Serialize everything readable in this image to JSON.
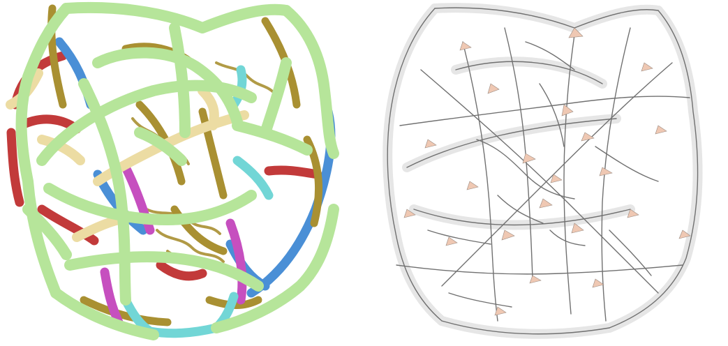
{
  "figure": {
    "panels": [
      {
        "id": "left",
        "description_icon": "colored-lattice-icon",
        "palette": {
          "lightgreen": "#b6e59a",
          "olive": "#a99032",
          "red": "#c23a3a",
          "blue": "#4a8fd6",
          "cream": "#ecdca3",
          "magenta": "#c64fbf",
          "cyan": "#72d6d6"
        }
      },
      {
        "id": "right",
        "description_icon": "wireframe-lattice-icon",
        "palette": {
          "halo": "#e4e4e4",
          "line": "#6f6f6f",
          "triangle": "#efc8b3"
        }
      }
    ]
  }
}
